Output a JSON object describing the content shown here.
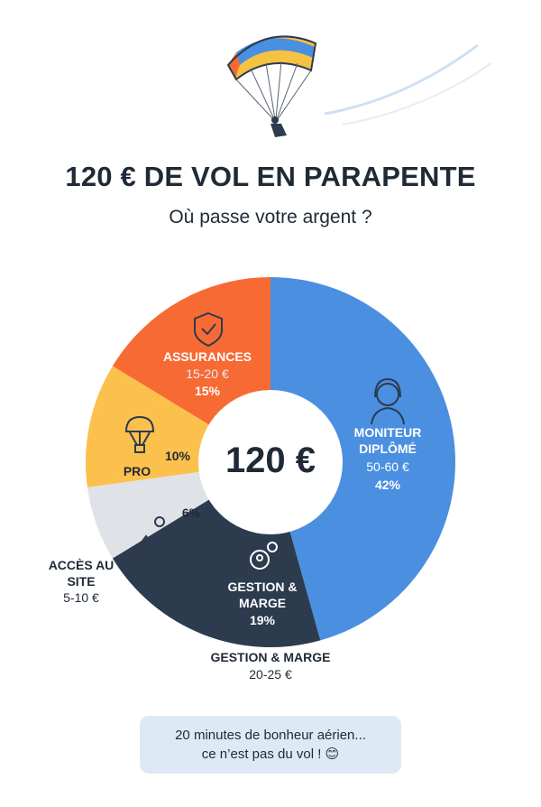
{
  "chart_data": {
    "type": "pie",
    "title": "120 € DE VOL EN PARAPENTE",
    "subtitle": "Où passe votre argent ?",
    "center_label": "120 €",
    "categories": [
      "MONITEUR DIPLÔMÉ",
      "GESTION & MARGE",
      "ACCÈS AU SITE",
      "PRO",
      "ASSURANCES"
    ],
    "values": [
      42,
      19,
      6,
      10,
      15
    ],
    "value_labels": [
      "42%",
      "19%",
      "6%",
      "10%",
      "15%"
    ],
    "ranges": [
      "50-60 €",
      "20-25 €",
      "5-10 €",
      null,
      "15-20 €"
    ],
    "colors": [
      "#4a8fe0",
      "#2d3b4e",
      "#dfe3e7",
      "#fcc14c",
      "#f76a34"
    ],
    "footnote": [
      "20 minutes de bonheur aérien...",
      "ce n’est pas du vol ! 😊"
    ]
  }
}
